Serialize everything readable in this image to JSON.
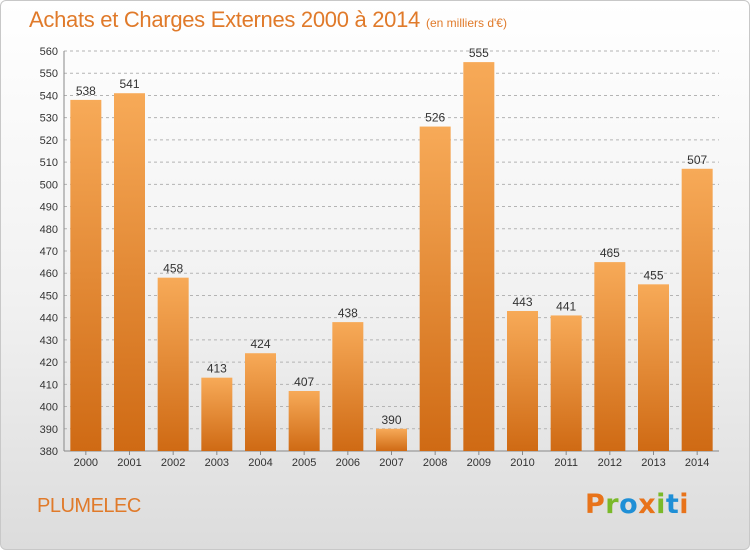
{
  "title": "Achats et Charges Externes 2000 à 2014",
  "unit_note": "(en milliers d'€)",
  "commune": "PLUMELEC",
  "logo": {
    "text": "Proxiti",
    "letter_colors": [
      "#e8731a",
      "#7ab929",
      "#1f8fd6",
      "#e8731a",
      "#7ab929",
      "#1f8fd6",
      "#e8731a"
    ]
  },
  "colors": {
    "bar_top": "#f7aa58",
    "bar_bottom": "#cf6a14",
    "grid": "#b4b4b4",
    "accent": "#e07a2a"
  },
  "chart_data": {
    "type": "bar",
    "title": "Achats et Charges Externes 2000 à 2014",
    "xlabel": "",
    "ylabel": "",
    "categories": [
      "2000",
      "2001",
      "2002",
      "2003",
      "2004",
      "2005",
      "2006",
      "2007",
      "2008",
      "2009",
      "2010",
      "2011",
      "2012",
      "2013",
      "2014"
    ],
    "values": [
      538,
      541,
      458,
      413,
      424,
      407,
      438,
      390,
      526,
      555,
      443,
      441,
      465,
      455,
      507
    ],
    "ylim": [
      380,
      560
    ],
    "ytick_step": 10,
    "grid": true,
    "data_labels": true
  }
}
